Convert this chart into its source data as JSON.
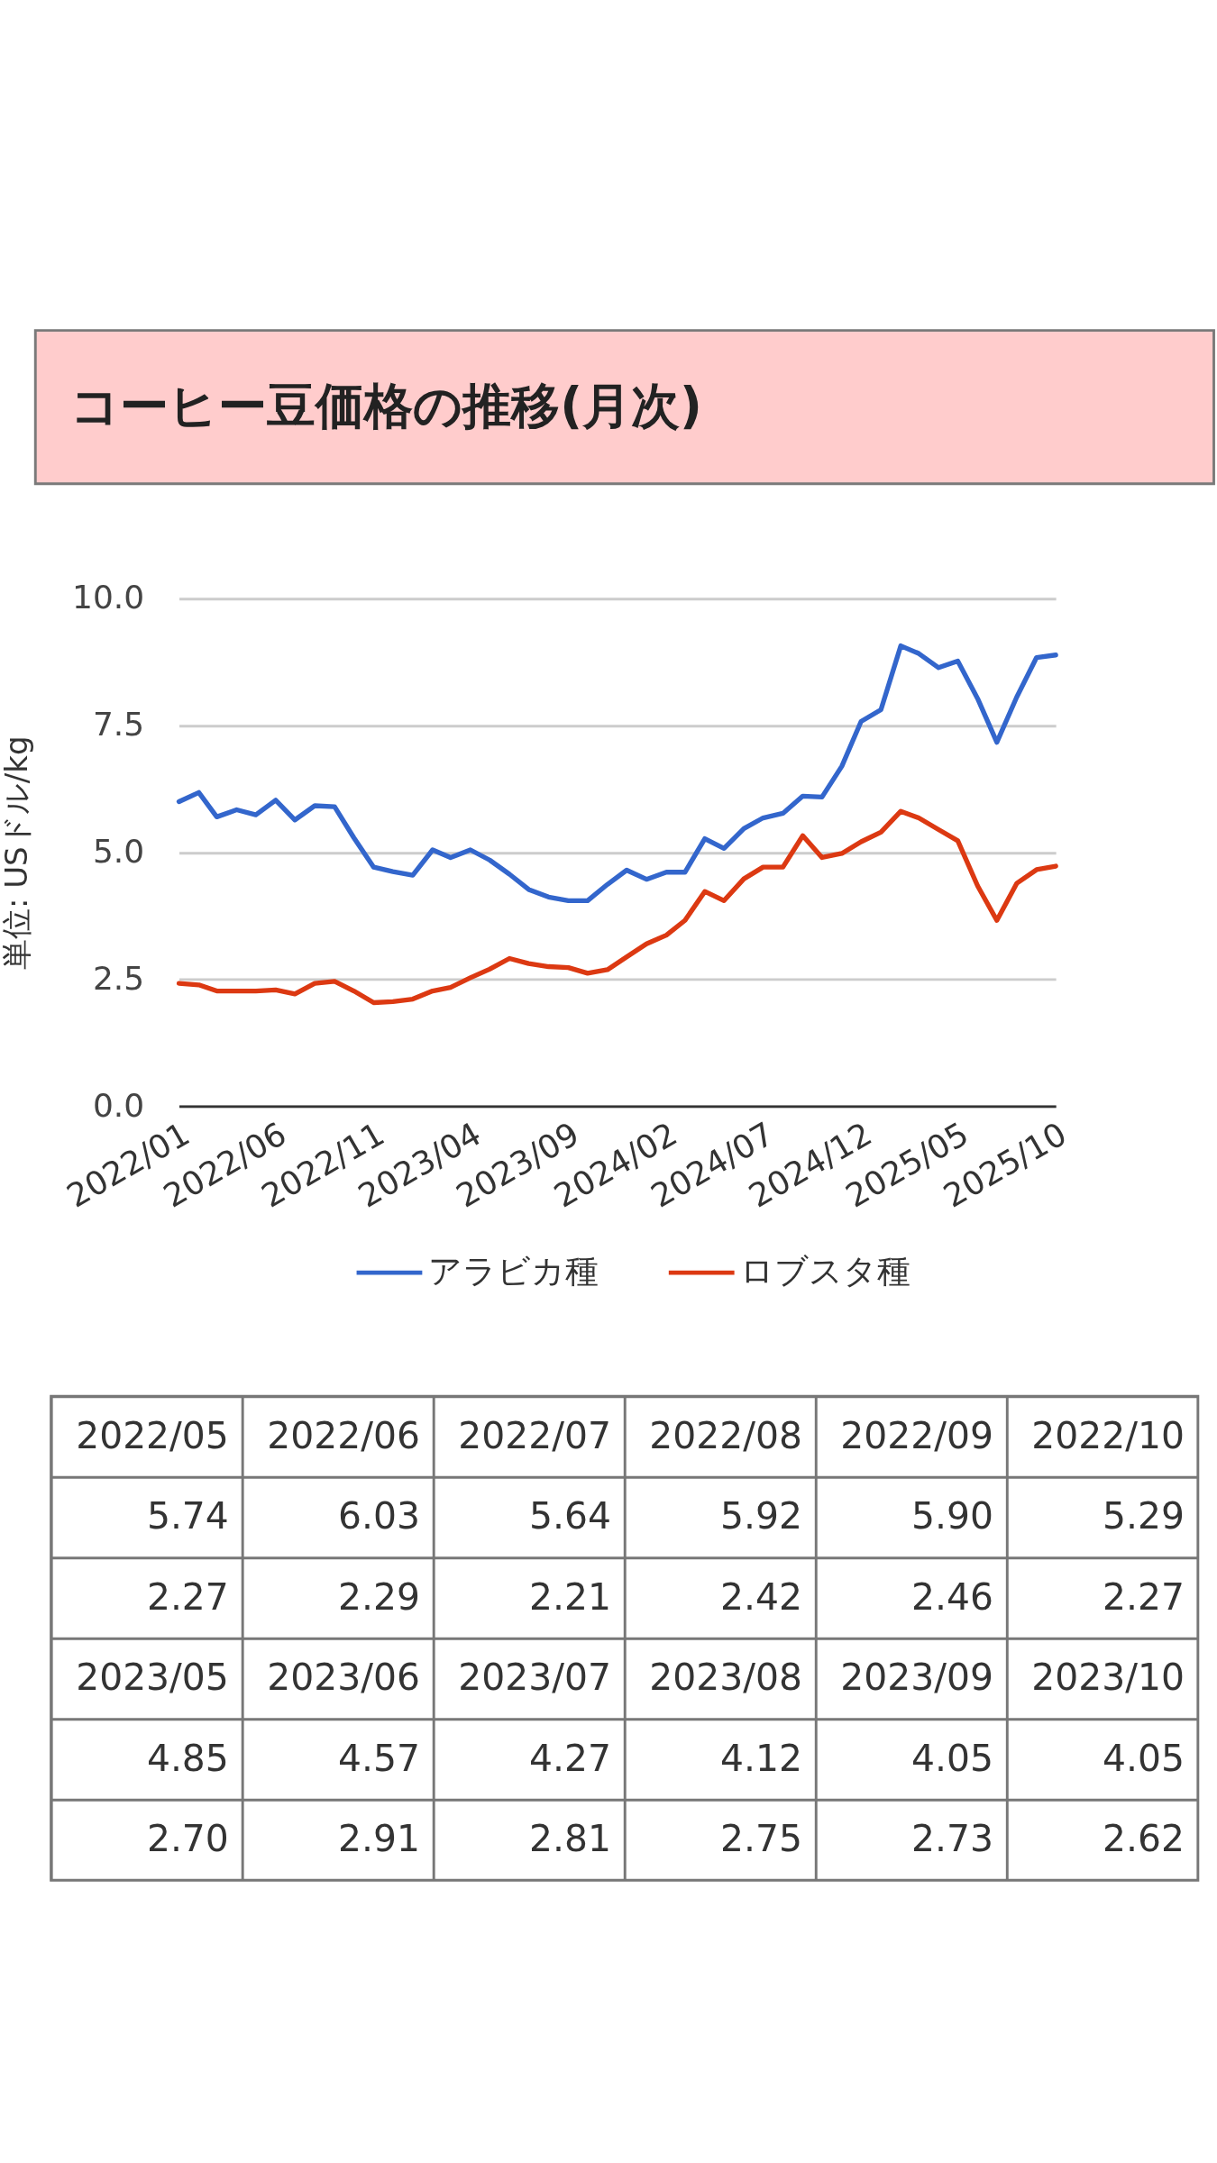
{
  "chart_data": [
    {
      "type": "line",
      "title": "コーヒー豆価格の推移(月次)",
      "ylabel": "単位: USドル/kg",
      "x": [
        "2022-01",
        "2022-02",
        "2022-03",
        "2022-04",
        "2022-05",
        "2022-06",
        "2022-07",
        "2022-08",
        "2022-09",
        "2022-10",
        "2022-11",
        "2022-12",
        "2023-01",
        "2023-02",
        "2023-03",
        "2023-04",
        "2023-05",
        "2023-06",
        "2023-07",
        "2023-08",
        "2023-09",
        "2023-10",
        "2023-11",
        "2023-12",
        "2024-01",
        "2024-02",
        "2024-03",
        "2024-04",
        "2024-05",
        "2024-06",
        "2024-07",
        "2024-08",
        "2024-09",
        "2024-10",
        "2024-11",
        "2024-12",
        "2025-01",
        "2025-02",
        "2025-03",
        "2025-04",
        "2025-05",
        "2025-06",
        "2025-07",
        "2025-08",
        "2025-09",
        "2025-10"
      ],
      "xlim": [
        "2022-01",
        "2025-10"
      ],
      "xticks": [
        {
          "value": "2022-01",
          "label": "2022/01"
        },
        {
          "value": "2022-06",
          "label": "2022/06"
        },
        {
          "value": "2022-11",
          "label": "2022/11"
        },
        {
          "value": "2023-04",
          "label": "2023/04"
        },
        {
          "value": "2023-09",
          "label": "2023/09"
        },
        {
          "value": "2024-02",
          "label": "2024/02"
        },
        {
          "value": "2024-07",
          "label": "2024/07"
        },
        {
          "value": "2024-12",
          "label": "2024/12"
        },
        {
          "value": "2025-05",
          "label": "2025/05"
        },
        {
          "value": "2025-10",
          "label": "2025/10"
        }
      ],
      "ylim": [
        0,
        10
      ],
      "yticks": [
        {
          "value": 0,
          "label": "0.0"
        },
        2.5,
        {
          "value": 5,
          "label": "5.0"
        },
        7.5,
        {
          "value": 10,
          "label": "10.0"
        }
      ],
      "grid": "y",
      "legend": "bottom",
      "series": [
        {
          "name": "アラビカ種",
          "color": "#3366cc",
          "values": [
            6.0,
            6.18,
            5.7,
            5.84,
            5.74,
            6.03,
            5.64,
            5.92,
            5.9,
            5.29,
            4.71,
            4.62,
            4.55,
            5.05,
            4.9,
            5.05,
            4.85,
            4.57,
            4.27,
            4.12,
            4.05,
            4.05,
            4.37,
            4.65,
            4.47,
            4.61,
            4.61,
            5.27,
            5.08,
            5.47,
            5.68,
            5.77,
            6.11,
            6.09,
            6.7,
            7.58,
            7.81,
            9.07,
            8.92,
            8.64,
            8.77,
            8.03,
            7.17,
            8.06,
            8.84,
            8.89
          ]
        },
        {
          "name": "ロブスタ種",
          "color": "#dc3912",
          "values": [
            2.42,
            2.39,
            2.27,
            2.27,
            2.27,
            2.29,
            2.21,
            2.42,
            2.46,
            2.27,
            2.04,
            2.06,
            2.11,
            2.27,
            2.34,
            2.53,
            2.7,
            2.91,
            2.81,
            2.75,
            2.73,
            2.62,
            2.69,
            2.94,
            3.2,
            3.37,
            3.66,
            4.23,
            4.05,
            4.48,
            4.71,
            4.71,
            5.33,
            4.9,
            4.98,
            5.21,
            5.4,
            5.81,
            5.68,
            5.45,
            5.23,
            4.34,
            3.66,
            4.39,
            4.66,
            4.73
          ]
        }
      ]
    },
    {
      "type": "other",
      "annotations": [
        "2022/05",
        "2022/06",
        "2022/07",
        "2022/08",
        "2022/09",
        "2022/10",
        "5.74",
        "6.03",
        "5.64",
        "5.92",
        "5.90",
        "5.29",
        "2.27",
        "2.29",
        "2.21",
        "2.42",
        "2.46",
        "2.27",
        "2023/05",
        "2023/06",
        "2023/07",
        "2023/08",
        "2023/09",
        "2023/10",
        "4.85",
        "4.57",
        "4.27",
        "4.12",
        "4.05",
        "4.05",
        "2.70",
        "2.91",
        "2.81",
        "2.75",
        "2.73",
        "2.62"
      ]
    }
  ]
}
